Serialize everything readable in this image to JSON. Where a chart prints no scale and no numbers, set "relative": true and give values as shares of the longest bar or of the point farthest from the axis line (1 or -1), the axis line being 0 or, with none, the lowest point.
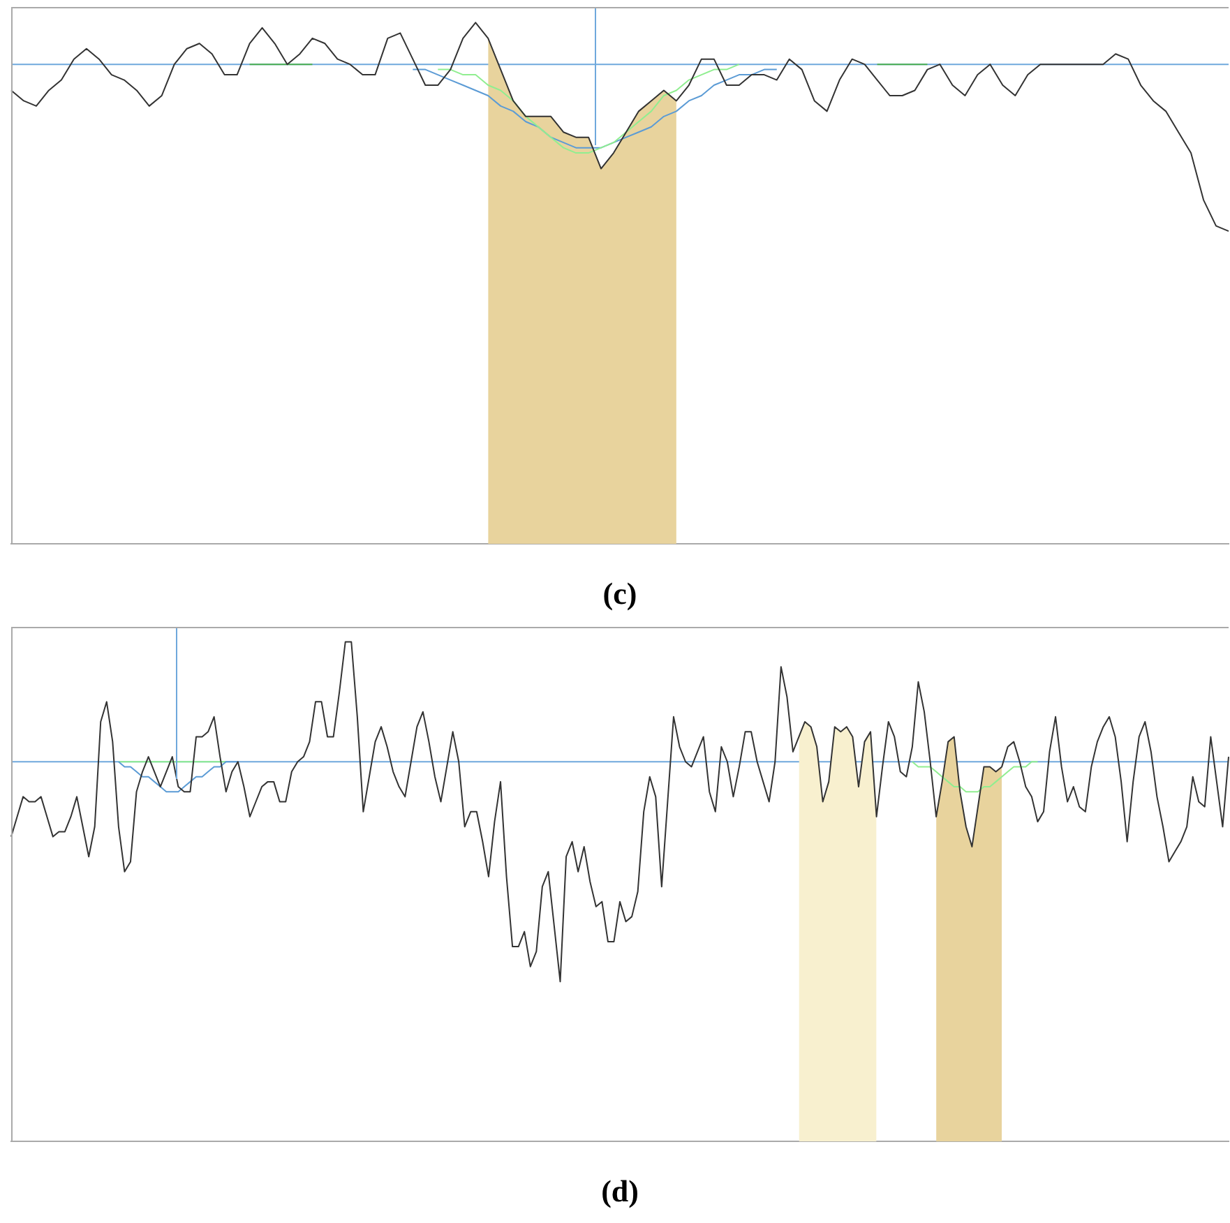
{
  "chart_data": [
    {
      "type": "line",
      "title": "(c)",
      "relative": true,
      "marker": "none",
      "line_style": "solid",
      "categories": [
        null,
        null,
        null,
        null,
        null,
        null,
        null,
        null,
        null,
        null,
        null,
        null,
        null,
        null,
        null,
        null,
        null,
        null,
        null,
        null,
        null,
        null,
        null,
        null,
        null,
        null,
        null,
        null,
        null,
        null,
        null,
        null,
        null,
        null,
        null,
        null,
        null,
        null,
        null,
        null,
        null,
        null,
        null,
        null,
        null,
        null,
        null,
        null,
        null,
        null,
        null,
        null,
        null,
        null,
        null,
        null,
        null,
        null,
        null,
        null,
        null,
        null,
        null,
        null,
        null,
        null,
        null,
        null,
        null,
        null,
        null,
        null,
        null,
        null,
        null,
        null,
        null,
        null,
        null,
        null,
        null,
        null,
        null,
        null,
        null,
        null,
        null,
        null,
        null,
        null,
        null,
        null,
        null,
        null,
        null,
        null,
        null,
        null
      ],
      "series": [
        {
          "type": "area",
          "color": "#e8d39d",
          "values": [
            null,
            null,
            null,
            null,
            null,
            null,
            null,
            null,
            null,
            null,
            null,
            null,
            null,
            null,
            null,
            null,
            null,
            null,
            null,
            null,
            null,
            null,
            null,
            null,
            null,
            null,
            null,
            null,
            null,
            null,
            null,
            null,
            null,
            null,
            null,
            null,
            null,
            null,
            0.97,
            0.91,
            0.85,
            0.82,
            0.82,
            0.82,
            0.79,
            0.78,
            0.78,
            0.72,
            0.75,
            0.79,
            0.83,
            0.85,
            0.87,
            0.85,
            null,
            null,
            null,
            null,
            null,
            null,
            null,
            null,
            null,
            null,
            null,
            null,
            null,
            null,
            null,
            null,
            null,
            null,
            null,
            null,
            null,
            null,
            null,
            null,
            null,
            null,
            null,
            null,
            null,
            null,
            null,
            null,
            null,
            null,
            null,
            null,
            null,
            null,
            null,
            null,
            null,
            null,
            null,
            null
          ]
        },
        {
          "color": "#4caf50",
          "values": [
            null,
            null,
            null,
            null,
            null,
            null,
            null,
            null,
            null,
            null,
            null,
            null,
            null,
            null,
            null,
            null,
            null,
            null,
            null,
            0.92,
            0.92,
            0.92,
            0.92,
            0.92,
            0.92,
            null,
            null,
            null,
            null,
            null,
            null,
            null,
            null,
            null,
            null,
            null,
            null,
            null,
            null,
            null,
            null,
            null,
            null,
            null,
            null,
            null,
            null,
            null,
            null,
            null,
            null,
            null,
            null,
            null,
            null,
            null,
            null,
            null,
            null,
            null,
            null,
            null,
            null,
            null,
            null,
            null,
            null,
            null,
            null,
            0.92,
            0.92,
            0.92,
            0.92,
            0.92,
            null,
            null,
            null,
            null,
            null,
            null,
            null,
            null,
            null,
            null,
            null,
            null,
            null,
            null,
            null,
            null,
            null,
            null,
            null,
            null,
            null,
            null,
            null,
            null
          ]
        },
        {
          "color": "#5b9bd5",
          "values": [
            null,
            null,
            null,
            null,
            null,
            null,
            null,
            null,
            null,
            null,
            null,
            null,
            null,
            null,
            null,
            null,
            null,
            null,
            null,
            null,
            null,
            null,
            null,
            null,
            null,
            null,
            null,
            null,
            null,
            null,
            null,
            null,
            0.91,
            0.91,
            0.9,
            0.89,
            0.88,
            0.87,
            0.86,
            0.84,
            0.83,
            0.81,
            0.8,
            0.78,
            0.77,
            0.76,
            0.76,
            0.76,
            0.77,
            0.78,
            0.79,
            0.8,
            0.82,
            0.83,
            0.85,
            0.86,
            0.88,
            0.89,
            0.9,
            0.9,
            0.91,
            0.91,
            null,
            null,
            null,
            null,
            null,
            null,
            null,
            null,
            null,
            null,
            null,
            null,
            null,
            null,
            null,
            null,
            null,
            null,
            null,
            null,
            null,
            null,
            null,
            null,
            null,
            null,
            null,
            null,
            null,
            null,
            null,
            null,
            null,
            null,
            null,
            null
          ]
        },
        {
          "color": "#90ee90",
          "values": [
            null,
            null,
            null,
            null,
            null,
            null,
            null,
            null,
            null,
            null,
            null,
            null,
            null,
            null,
            null,
            null,
            null,
            null,
            null,
            null,
            null,
            null,
            null,
            null,
            null,
            null,
            null,
            null,
            null,
            null,
            null,
            null,
            null,
            null,
            0.91,
            0.91,
            0.9,
            0.9,
            0.88,
            0.87,
            0.85,
            0.82,
            0.8,
            0.78,
            0.76,
            0.75,
            0.75,
            0.76,
            0.77,
            0.79,
            0.81,
            0.83,
            0.86,
            0.87,
            0.89,
            0.9,
            0.91,
            0.91,
            0.92,
            null,
            null,
            null,
            null,
            null,
            null,
            null,
            null,
            null,
            null,
            null,
            null,
            null,
            null,
            null,
            null,
            null,
            null,
            null,
            null,
            null,
            null,
            null,
            null,
            null,
            null,
            null,
            null,
            null,
            null,
            null,
            null,
            null,
            null,
            null,
            null,
            null,
            null,
            null
          ]
        },
        {
          "color": "#333333",
          "values": [
            0.87,
            0.85,
            0.84,
            0.87,
            0.89,
            0.93,
            0.95,
            0.93,
            0.9,
            0.89,
            0.87,
            0.84,
            0.86,
            0.92,
            0.95,
            0.96,
            0.94,
            0.9,
            0.9,
            0.96,
            0.99,
            0.96,
            0.92,
            0.94,
            0.97,
            0.96,
            0.93,
            0.92,
            0.9,
            0.9,
            0.97,
            0.98,
            0.93,
            0.88,
            0.88,
            0.91,
            0.97,
            1.0,
            0.97,
            0.91,
            0.85,
            0.82,
            0.82,
            0.82,
            0.79,
            0.78,
            0.78,
            0.72,
            0.75,
            0.79,
            0.83,
            0.85,
            0.87,
            0.85,
            0.88,
            0.93,
            0.93,
            0.88,
            0.88,
            0.9,
            0.9,
            0.89,
            0.93,
            0.91,
            0.85,
            0.83,
            0.89,
            0.93,
            0.92,
            0.89,
            0.86,
            0.86,
            0.87,
            0.91,
            0.92,
            0.88,
            0.86,
            0.9,
            0.92,
            0.88,
            0.86,
            0.9,
            0.92,
            0.92,
            0.92,
            0.92,
            0.92,
            0.92,
            0.94,
            0.93,
            0.88,
            0.85,
            0.83,
            0.79,
            0.75,
            0.66,
            0.61,
            0.6
          ]
        }
      ],
      "ref_lines": [
        {
          "axis": "y",
          "value": 0.92,
          "color": "#6fa8dc"
        }
      ]
    },
    {
      "type": "line",
      "title": "(d)",
      "relative": true,
      "marker": "none",
      "line_style": "solid",
      "categories": [
        null,
        null,
        null,
        null,
        null,
        null,
        null,
        null,
        null,
        null,
        null,
        null,
        null,
        null,
        null,
        null,
        null,
        null,
        null,
        null,
        null,
        null,
        null,
        null,
        null,
        null,
        null,
        null,
        null,
        null,
        null,
        null,
        null,
        null,
        null,
        null,
        null,
        null,
        null,
        null,
        null,
        null,
        null,
        null,
        null,
        null,
        null,
        null,
        null,
        null,
        null,
        null,
        null,
        null,
        null,
        null,
        null,
        null,
        null,
        null,
        null,
        null,
        null,
        null,
        null,
        null,
        null,
        null,
        null,
        null,
        null,
        null,
        null,
        null,
        null,
        null,
        null,
        null,
        null,
        null,
        null,
        null,
        null,
        null,
        null,
        null,
        null,
        null,
        null,
        null,
        null,
        null,
        null,
        null,
        null,
        null,
        null,
        null,
        null,
        null,
        null,
        null,
        null,
        null,
        null,
        null,
        null,
        null,
        null,
        null,
        null,
        null,
        null,
        null,
        null,
        null,
        null,
        null,
        null,
        null,
        null,
        null,
        null,
        null,
        null,
        null,
        null,
        null,
        null,
        null,
        null,
        null,
        null,
        null,
        null,
        null,
        null,
        null,
        null,
        null,
        null,
        null,
        null,
        null,
        null,
        null,
        null,
        null,
        null,
        null,
        null,
        null,
        null,
        null,
        null,
        null,
        null,
        null,
        null,
        null,
        null,
        null,
        null,
        null,
        null,
        null,
        null,
        null,
        null,
        null,
        null,
        null,
        null,
        null,
        null,
        null,
        null,
        null,
        null,
        null,
        null,
        null,
        null,
        null,
        null,
        null,
        null,
        null,
        null,
        null,
        null,
        null,
        null,
        null,
        null,
        null,
        null,
        null,
        null,
        null,
        null,
        null,
        null,
        null,
        null
      ],
      "series": [
        {
          "type": "area",
          "color": "#f8f0cf",
          "values": [
            null,
            null,
            null,
            null,
            null,
            null,
            null,
            null,
            null,
            null,
            null,
            null,
            null,
            null,
            null,
            null,
            null,
            null,
            null,
            null,
            null,
            null,
            null,
            null,
            null,
            null,
            null,
            null,
            null,
            null,
            null,
            null,
            null,
            null,
            null,
            null,
            null,
            null,
            null,
            null,
            null,
            null,
            null,
            null,
            null,
            null,
            null,
            null,
            null,
            null,
            null,
            null,
            null,
            null,
            null,
            null,
            null,
            null,
            null,
            null,
            null,
            null,
            null,
            null,
            null,
            null,
            null,
            null,
            null,
            null,
            null,
            null,
            null,
            null,
            null,
            null,
            null,
            null,
            null,
            null,
            null,
            null,
            null,
            null,
            null,
            null,
            null,
            null,
            null,
            null,
            null,
            null,
            null,
            null,
            null,
            null,
            null,
            null,
            null,
            null,
            null,
            null,
            null,
            null,
            null,
            null,
            null,
            null,
            null,
            null,
            null,
            null,
            null,
            null,
            null,
            null,
            null,
            null,
            null,
            null,
            null,
            null,
            null,
            null,
            null,
            null,
            null,
            null,
            null,
            null,
            null,
            null,
            0.81,
            0.84,
            0.83,
            0.79,
            0.68,
            0.72,
            0.83,
            0.82,
            0.83,
            0.81,
            0.71,
            0.8,
            0.82,
            0.65,
            null,
            null,
            null,
            null,
            null,
            null,
            null,
            null,
            null,
            null,
            null,
            null,
            null,
            null,
            null,
            null,
            null,
            null,
            null,
            null,
            null,
            null,
            null,
            null,
            null,
            null,
            null,
            null,
            null,
            null,
            null,
            null,
            null,
            null,
            null,
            null,
            null,
            null,
            null,
            null,
            null,
            null,
            null,
            null,
            null,
            null,
            null,
            null,
            null,
            null,
            null,
            null,
            null,
            null,
            null,
            null,
            null,
            null,
            null
          ]
        },
        {
          "type": "area",
          "color": "#e8d39d",
          "values": [
            null,
            null,
            null,
            null,
            null,
            null,
            null,
            null,
            null,
            null,
            null,
            null,
            null,
            null,
            null,
            null,
            null,
            null,
            null,
            null,
            null,
            null,
            null,
            null,
            null,
            null,
            null,
            null,
            null,
            null,
            null,
            null,
            null,
            null,
            null,
            null,
            null,
            null,
            null,
            null,
            null,
            null,
            null,
            null,
            null,
            null,
            null,
            null,
            null,
            null,
            null,
            null,
            null,
            null,
            null,
            null,
            null,
            null,
            null,
            null,
            null,
            null,
            null,
            null,
            null,
            null,
            null,
            null,
            null,
            null,
            null,
            null,
            null,
            null,
            null,
            null,
            null,
            null,
            null,
            null,
            null,
            null,
            null,
            null,
            null,
            null,
            null,
            null,
            null,
            null,
            null,
            null,
            null,
            null,
            null,
            null,
            null,
            null,
            null,
            null,
            null,
            null,
            null,
            null,
            null,
            null,
            null,
            null,
            null,
            null,
            null,
            null,
            null,
            null,
            null,
            null,
            null,
            null,
            null,
            null,
            null,
            null,
            null,
            null,
            null,
            null,
            null,
            null,
            null,
            null,
            null,
            null,
            null,
            null,
            null,
            null,
            null,
            null,
            null,
            null,
            null,
            null,
            null,
            null,
            null,
            null,
            null,
            null,
            null,
            null,
            null,
            null,
            null,
            null,
            null,
            0.65,
            0.72,
            0.8,
            0.81,
            0.7,
            0.63,
            0.59,
            0.67,
            0.75,
            0.75,
            0.74,
            0.75,
            null,
            null,
            null,
            null,
            null,
            null,
            null,
            null,
            null,
            null,
            null,
            null,
            null,
            null,
            null,
            null,
            null,
            null,
            null,
            null,
            null,
            null,
            null,
            null,
            null,
            null,
            null,
            null,
            null,
            null,
            null,
            null,
            null,
            null,
            null,
            null,
            null,
            null
          ]
        },
        {
          "color": "#90ee90",
          "values": [
            null,
            null,
            null,
            null,
            null,
            null,
            null,
            null,
            null,
            null,
            null,
            null,
            null,
            null,
            null,
            null,
            null,
            null,
            0.76,
            0.76,
            0.76,
            0.76,
            0.76,
            0.76,
            0.76,
            0.76,
            0.76,
            0.76,
            0.76,
            0.76,
            0.76,
            0.76,
            0.76,
            0.76,
            0.76,
            0.76,
            0.76,
            null,
            null,
            null,
            null,
            null,
            null,
            null,
            null,
            null,
            null,
            null,
            null,
            null,
            null,
            null,
            null,
            null,
            null,
            null,
            null,
            null,
            null,
            null,
            null,
            null,
            null,
            null,
            null,
            null,
            null,
            null,
            null,
            null,
            null,
            null,
            null,
            null,
            null,
            null,
            null,
            null,
            null,
            null,
            null,
            null,
            null,
            null,
            null,
            null,
            null,
            null,
            null,
            null,
            null,
            null,
            null,
            null,
            null,
            null,
            null,
            null,
            null,
            null,
            null,
            null,
            null,
            null,
            null,
            null,
            null,
            null,
            null,
            null,
            null,
            null,
            null,
            null,
            null,
            null,
            null,
            null,
            null,
            null,
            null,
            null,
            null,
            null,
            null,
            null,
            null,
            null,
            null,
            null,
            null,
            null,
            null,
            null,
            null,
            null,
            null,
            null,
            null,
            null,
            null,
            null,
            null,
            null,
            null,
            null,
            null,
            null,
            null,
            null,
            null,
            null,
            null,
            null,
            null,
            null,
            null,
            null,
            null,
            null,
            null,
            null,
            null,
            null,
            null,
            null,
            null,
            null,
            null,
            null,
            null,
            null,
            null,
            null,
            null,
            null,
            null,
            null,
            null,
            null,
            null,
            null,
            null,
            null,
            null,
            null,
            null,
            null,
            null,
            null,
            null,
            null,
            null,
            null,
            null,
            null,
            null,
            null,
            null,
            null,
            null,
            null,
            null,
            null,
            null
          ]
        },
        {
          "color": "#5b9bd5",
          "values": [
            null,
            null,
            null,
            null,
            null,
            null,
            null,
            null,
            null,
            null,
            null,
            null,
            null,
            null,
            null,
            null,
            null,
            null,
            0.76,
            0.75,
            0.75,
            0.74,
            0.73,
            0.73,
            0.72,
            0.71,
            0.7,
            0.7,
            0.7,
            0.71,
            0.72,
            0.73,
            0.73,
            0.74,
            0.75,
            0.75,
            0.76,
            0.76,
            0.76,
            null,
            null,
            null,
            null,
            null,
            null,
            null,
            null,
            null,
            null,
            null,
            null,
            null,
            null,
            null,
            null,
            null,
            null,
            null,
            null,
            null,
            null,
            null,
            null,
            null,
            null,
            null,
            null,
            null,
            null,
            null,
            null,
            null,
            null,
            null,
            null,
            null,
            null,
            null,
            null,
            null,
            null,
            null,
            null,
            null,
            null,
            null,
            null,
            null,
            null,
            null,
            null,
            null,
            null,
            null,
            null,
            null,
            null,
            null,
            null,
            null,
            null,
            null,
            null,
            null,
            null,
            null,
            null,
            null,
            null,
            null,
            null,
            null,
            null,
            null,
            null,
            null,
            null,
            null,
            null,
            null,
            null,
            null,
            null,
            null,
            null,
            null,
            null,
            null,
            null,
            null,
            null,
            null,
            null,
            null,
            null,
            null,
            null,
            null,
            null,
            null,
            null,
            null,
            null,
            null,
            null,
            null,
            null,
            null,
            null,
            null,
            null,
            null,
            null,
            null,
            null,
            null,
            null,
            null,
            null,
            null,
            null,
            null,
            null,
            null,
            null,
            null,
            null,
            null,
            null,
            null,
            null,
            null,
            null,
            null,
            null,
            null,
            null,
            null,
            null,
            null,
            null,
            null,
            null,
            null,
            null,
            null,
            null,
            null,
            null,
            null,
            null,
            null,
            null,
            null,
            null,
            null,
            null,
            null,
            null,
            null,
            null,
            null,
            null,
            null,
            null
          ]
        },
        {
          "color": "#90ee90",
          "values": [
            null,
            null,
            null,
            null,
            null,
            null,
            null,
            null,
            null,
            null,
            null,
            null,
            null,
            null,
            null,
            null,
            null,
            null,
            null,
            null,
            null,
            null,
            null,
            null,
            null,
            null,
            null,
            null,
            null,
            null,
            null,
            null,
            null,
            null,
            null,
            null,
            null,
            null,
            null,
            null,
            null,
            null,
            null,
            null,
            null,
            null,
            null,
            null,
            null,
            null,
            null,
            null,
            null,
            null,
            null,
            null,
            null,
            null,
            null,
            null,
            null,
            null,
            null,
            null,
            null,
            null,
            null,
            null,
            null,
            null,
            null,
            null,
            null,
            null,
            null,
            null,
            null,
            null,
            null,
            null,
            null,
            null,
            null,
            null,
            null,
            null,
            null,
            null,
            null,
            null,
            null,
            null,
            null,
            null,
            null,
            null,
            null,
            null,
            null,
            null,
            null,
            null,
            null,
            null,
            null,
            null,
            null,
            null,
            null,
            null,
            null,
            null,
            null,
            null,
            null,
            null,
            null,
            null,
            null,
            null,
            null,
            null,
            null,
            null,
            null,
            null,
            null,
            null,
            null,
            null,
            null,
            null,
            null,
            null,
            null,
            null,
            null,
            null,
            null,
            null,
            null,
            null,
            null,
            null,
            null,
            null,
            null,
            null,
            null,
            null,
            null,
            0.76,
            0.75,
            0.75,
            0.75,
            0.74,
            0.73,
            0.72,
            0.71,
            0.71,
            0.7,
            0.7,
            0.7,
            0.71,
            0.71,
            0.72,
            0.73,
            0.74,
            0.75,
            0.75,
            0.75,
            0.76,
            0.76,
            null,
            null,
            null,
            null,
            null,
            null,
            null,
            null,
            null,
            null,
            null,
            null,
            null,
            null,
            null,
            null,
            null,
            null,
            null,
            null,
            null,
            null,
            null,
            null,
            null,
            null,
            null,
            null,
            null,
            null,
            null,
            null
          ]
        },
        {
          "color": "#333333",
          "values": [
            0.61,
            0.65,
            0.69,
            0.68,
            0.68,
            0.69,
            0.65,
            0.61,
            0.62,
            0.62,
            0.65,
            0.69,
            0.63,
            0.57,
            0.63,
            0.84,
            0.88,
            0.8,
            0.63,
            0.54,
            0.56,
            0.7,
            0.74,
            0.77,
            0.74,
            0.71,
            0.74,
            0.77,
            0.71,
            0.7,
            0.7,
            0.81,
            0.81,
            0.82,
            0.85,
            0.77,
            0.7,
            0.74,
            0.76,
            0.71,
            0.65,
            0.68,
            0.71,
            0.72,
            0.72,
            0.68,
            0.68,
            0.74,
            0.76,
            0.77,
            0.8,
            0.88,
            0.88,
            0.81,
            0.81,
            0.9,
            1.0,
            1.0,
            0.85,
            0.66,
            0.73,
            0.8,
            0.83,
            0.79,
            0.74,
            0.71,
            0.69,
            0.76,
            0.83,
            0.86,
            0.8,
            0.73,
            0.68,
            0.75,
            0.82,
            0.76,
            0.63,
            0.66,
            0.66,
            0.6,
            0.53,
            0.64,
            0.72,
            0.53,
            0.39,
            0.39,
            0.42,
            0.35,
            0.38,
            0.51,
            0.54,
            0.43,
            0.32,
            0.57,
            0.6,
            0.54,
            0.59,
            0.52,
            0.47,
            0.48,
            0.4,
            0.4,
            0.48,
            0.44,
            0.45,
            0.5,
            0.66,
            0.73,
            0.69,
            0.51,
            0.68,
            0.85,
            0.79,
            0.76,
            0.75,
            0.78,
            0.81,
            0.7,
            0.66,
            0.79,
            0.76,
            0.69,
            0.75,
            0.82,
            0.82,
            0.76,
            0.72,
            0.68,
            0.76,
            0.95,
            0.89,
            0.78,
            0.81,
            0.84,
            0.83,
            0.79,
            0.68,
            0.72,
            0.83,
            0.82,
            0.83,
            0.81,
            0.71,
            0.8,
            0.82,
            0.65,
            0.75,
            0.84,
            0.81,
            0.74,
            0.73,
            0.79,
            0.92,
            0.86,
            0.76,
            0.65,
            0.72,
            0.8,
            0.81,
            0.7,
            0.63,
            0.59,
            0.67,
            0.75,
            0.75,
            0.74,
            0.75,
            0.79,
            0.8,
            0.76,
            0.71,
            0.69,
            0.64,
            0.66,
            0.78,
            0.85,
            0.75,
            0.68,
            0.71,
            0.67,
            0.66,
            0.75,
            0.8,
            0.83,
            0.85,
            0.81,
            0.72,
            0.6,
            0.72,
            0.81,
            0.84,
            0.78,
            0.69,
            0.63,
            0.56,
            0.58,
            0.6,
            0.63,
            0.73,
            0.68,
            0.67,
            0.81,
            0.72,
            0.63,
            0.77
          ]
        }
      ],
      "ref_lines": [
        {
          "axis": "y",
          "value": 0.76,
          "color": "#6fa8dc"
        }
      ]
    }
  ]
}
